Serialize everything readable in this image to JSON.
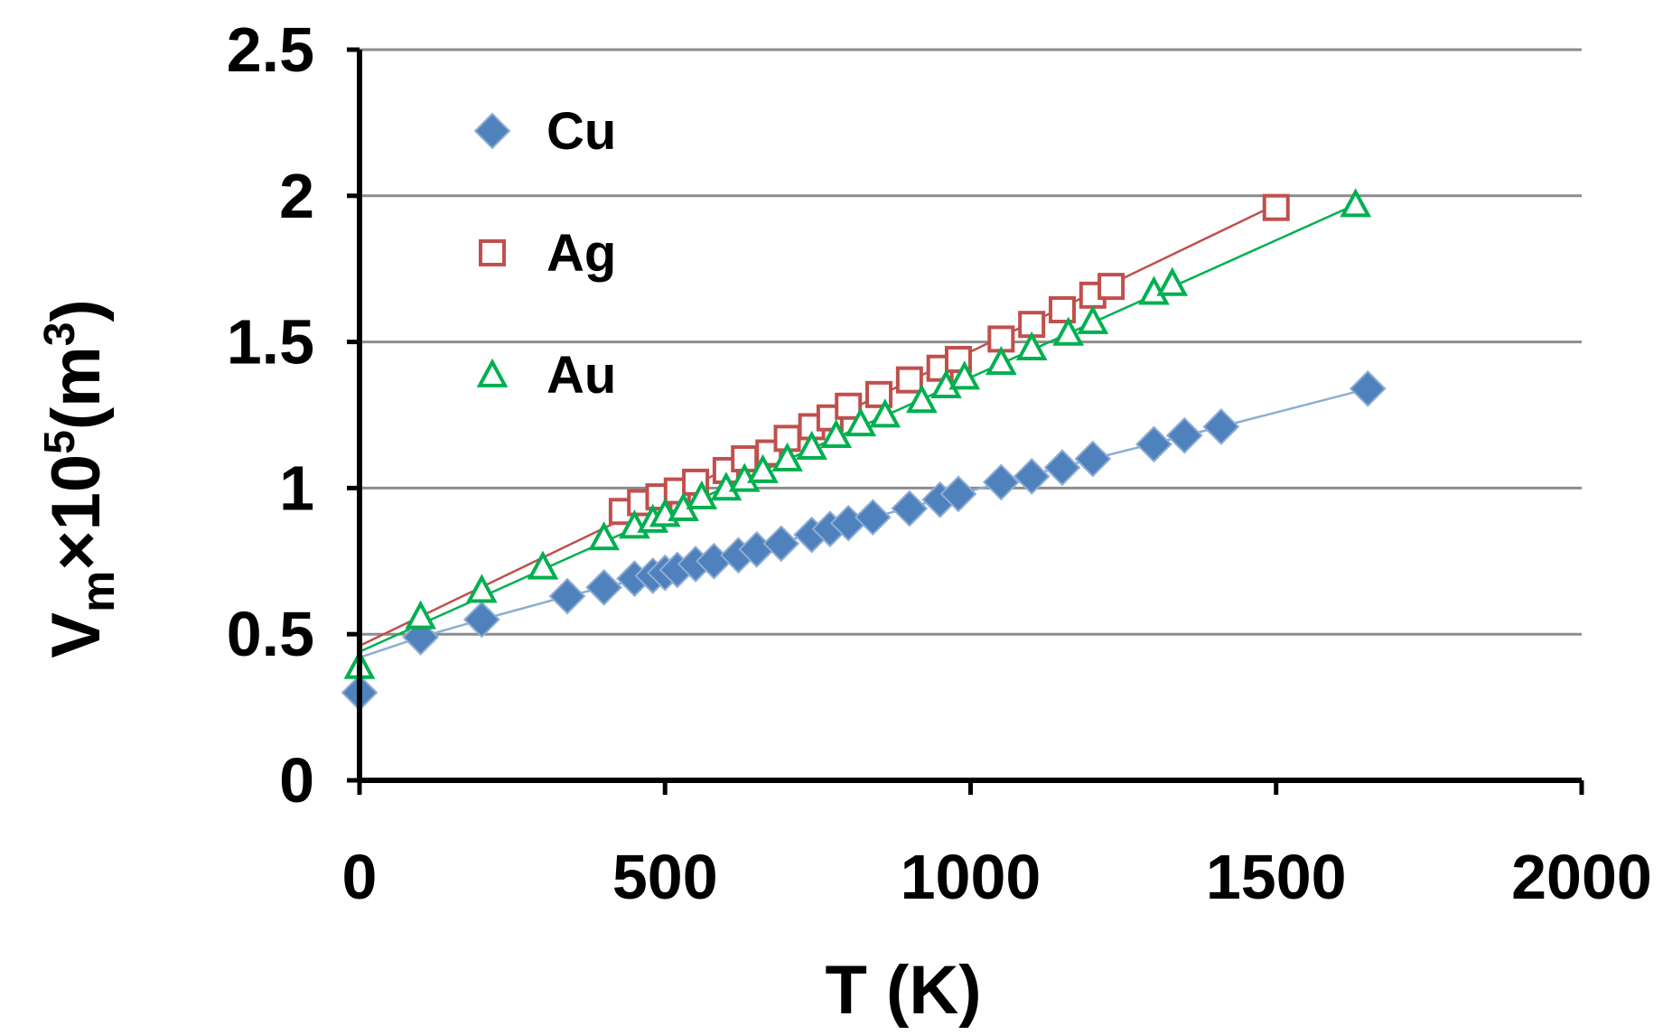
{
  "chart_data": {
    "type": "scatter",
    "title": "",
    "xlabel": "T (K)",
    "ylabel": {
      "base": "V",
      "sub": "m",
      "mid": "×10",
      "sup_exp": "5",
      "unit_open": "(m",
      "unit_sup": "3",
      "unit_close": ")"
    },
    "xlim": [
      0,
      2000
    ],
    "ylim": [
      0,
      2.5
    ],
    "xticks": [
      "0",
      "500",
      "1000",
      "1500",
      "2000"
    ],
    "yticks": [
      "0",
      "0.5",
      "1",
      "1.5",
      "2",
      "2.5"
    ],
    "grid": "horizontal",
    "legend_position": "top-left",
    "series": [
      {
        "name": "Cu",
        "color": "#4f81bd",
        "marker": "diamond",
        "points": [
          [
            0,
            0.3
          ],
          [
            100,
            0.49
          ],
          [
            200,
            0.55
          ],
          [
            340,
            0.63
          ],
          [
            400,
            0.66
          ],
          [
            450,
            0.69
          ],
          [
            480,
            0.7
          ],
          [
            500,
            0.71
          ],
          [
            520,
            0.72
          ],
          [
            550,
            0.74
          ],
          [
            580,
            0.75
          ],
          [
            620,
            0.77
          ],
          [
            650,
            0.79
          ],
          [
            690,
            0.81
          ],
          [
            740,
            0.84
          ],
          [
            770,
            0.86
          ],
          [
            800,
            0.88
          ],
          [
            840,
            0.9
          ],
          [
            900,
            0.93
          ],
          [
            950,
            0.96
          ],
          [
            980,
            0.98
          ],
          [
            1050,
            1.02
          ],
          [
            1100,
            1.04
          ],
          [
            1150,
            1.07
          ],
          [
            1200,
            1.1
          ],
          [
            1300,
            1.15
          ],
          [
            1350,
            1.18
          ],
          [
            1410,
            1.21
          ],
          [
            1650,
            1.34
          ]
        ],
        "fit": [
          [
            0,
            0.42
          ],
          [
            100,
            0.49
          ],
          [
            200,
            0.55
          ],
          [
            340,
            0.63
          ],
          [
            500,
            0.71
          ],
          [
            700,
            0.82
          ],
          [
            1000,
            0.99
          ],
          [
            1200,
            1.1
          ],
          [
            1410,
            1.21
          ],
          [
            1650,
            1.34
          ]
        ]
      },
      {
        "name": "Ag",
        "color": "#c0504d",
        "marker": "square",
        "points": [
          [
            430,
            0.92
          ],
          [
            460,
            0.95
          ],
          [
            490,
            0.97
          ],
          [
            520,
            0.99
          ],
          [
            550,
            1.02
          ],
          [
            600,
            1.06
          ],
          [
            630,
            1.1
          ],
          [
            670,
            1.12
          ],
          [
            700,
            1.17
          ],
          [
            740,
            1.21
          ],
          [
            770,
            1.24
          ],
          [
            800,
            1.28
          ],
          [
            850,
            1.32
          ],
          [
            900,
            1.37
          ],
          [
            950,
            1.41
          ],
          [
            980,
            1.44
          ],
          [
            1050,
            1.51
          ],
          [
            1100,
            1.56
          ],
          [
            1150,
            1.61
          ],
          [
            1200,
            1.66
          ],
          [
            1230,
            1.69
          ],
          [
            1500,
            1.96
          ]
        ],
        "fit": [
          [
            0,
            0.46
          ],
          [
            1500,
            1.97
          ]
        ]
      },
      {
        "name": "Au",
        "color": "#00b050",
        "marker": "triangle",
        "points": [
          [
            0,
            0.39
          ],
          [
            100,
            0.56
          ],
          [
            200,
            0.65
          ],
          [
            300,
            0.73
          ],
          [
            400,
            0.83
          ],
          [
            450,
            0.87
          ],
          [
            480,
            0.89
          ],
          [
            500,
            0.91
          ],
          [
            530,
            0.93
          ],
          [
            560,
            0.97
          ],
          [
            600,
            1.0
          ],
          [
            630,
            1.03
          ],
          [
            660,
            1.06
          ],
          [
            700,
            1.1
          ],
          [
            740,
            1.14
          ],
          [
            780,
            1.18
          ],
          [
            820,
            1.22
          ],
          [
            860,
            1.25
          ],
          [
            920,
            1.3
          ],
          [
            960,
            1.35
          ],
          [
            990,
            1.38
          ],
          [
            1050,
            1.43
          ],
          [
            1100,
            1.48
          ],
          [
            1160,
            1.53
          ],
          [
            1200,
            1.57
          ],
          [
            1300,
            1.67
          ],
          [
            1330,
            1.7
          ],
          [
            1630,
            1.97
          ]
        ],
        "fit": [
          [
            0,
            0.44
          ],
          [
            1630,
            1.97
          ]
        ]
      }
    ]
  }
}
